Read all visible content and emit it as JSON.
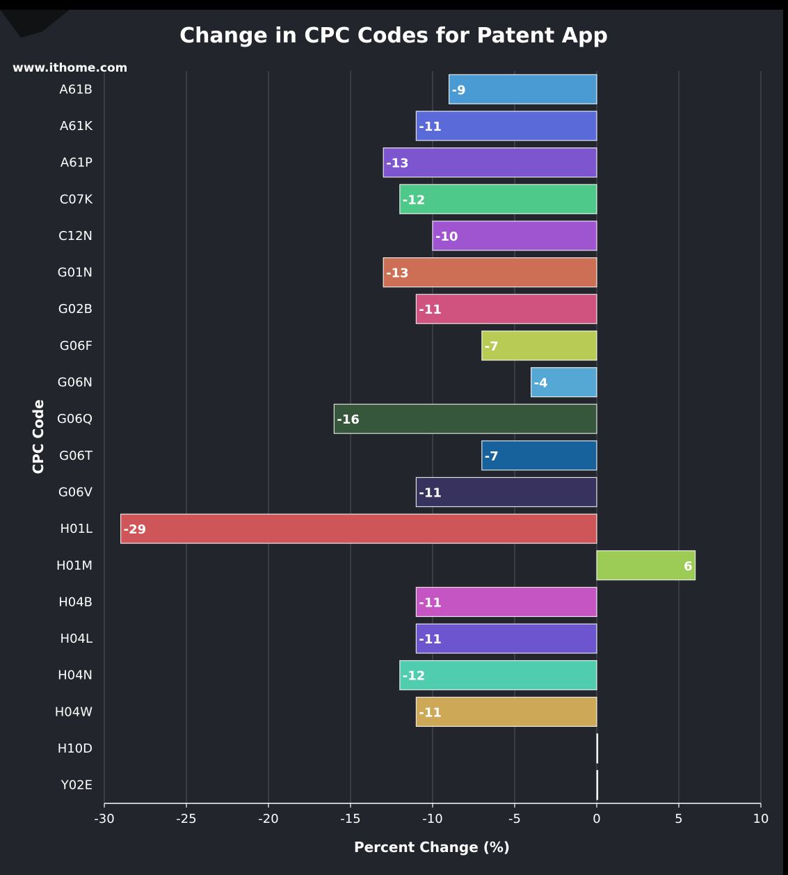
{
  "watermark": "www.ithome.com",
  "chart_data": {
    "type": "bar",
    "orientation": "horizontal",
    "title": "Change in CPC Codes for Patent App",
    "xlabel": "Percent Change (%)",
    "ylabel": "CPC Code",
    "xlim": [
      -30,
      10
    ],
    "xticks": [
      -30,
      -25,
      -20,
      -15,
      -10,
      -5,
      0,
      5,
      10
    ],
    "xtick_labels": [
      "-30",
      "-25",
      "-20",
      "-15",
      "-10",
      "-5",
      "0",
      "5",
      "10"
    ],
    "grid": "vertical",
    "categories": [
      "A61B",
      "A61K",
      "A61P",
      "C07K",
      "C12N",
      "G01N",
      "G02B",
      "G06F",
      "G06N",
      "G06Q",
      "G06T",
      "G06V",
      "H01L",
      "H01M",
      "H04B",
      "H04L",
      "H04N",
      "H04W",
      "H10D",
      "Y02E"
    ],
    "values": [
      -9,
      -11,
      -13,
      -12,
      -10,
      -13,
      -11,
      -7,
      -4,
      -16,
      -7,
      -11,
      -29,
      6,
      -11,
      -11,
      -12,
      -11,
      0,
      0
    ],
    "data_labels": [
      "-9",
      "-11",
      "-13",
      "-12",
      "-10",
      "-13",
      "-11",
      "-7",
      "-4",
      "-16",
      "-7",
      "-11",
      "-29",
      "6",
      "-11",
      "-11",
      "-12",
      "-11",
      "",
      ""
    ],
    "colors": [
      "#4a9bd4",
      "#5a6ad8",
      "#7d55cf",
      "#4fc98a",
      "#a055d0",
      "#cc6f55",
      "#d0527f",
      "#b8cc55",
      "#55a8d4",
      "#36573c",
      "#17629c",
      "#38335e",
      "#cf5658",
      "#9ccc55",
      "#c655c4",
      "#6c55cf",
      "#4fcdae",
      "#cda856",
      "#ffffff",
      "#ffffff"
    ]
  }
}
